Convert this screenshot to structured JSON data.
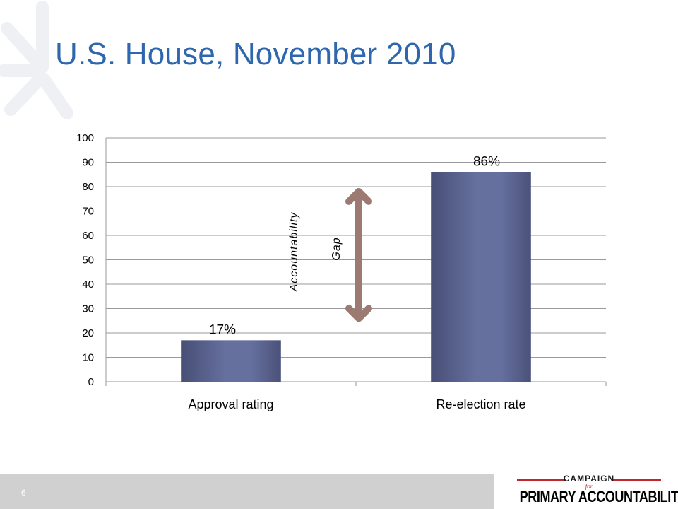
{
  "slide": {
    "title": "U.S. House, November 2010",
    "page_number": "6"
  },
  "logo": {
    "top": "CAMPAIGN",
    "middle": "for",
    "main": "PRIMARY ACCOUNTABILITY"
  },
  "colors": {
    "title": "#2e67ad",
    "bar": "#5f6995",
    "arrow": "#9c7a72",
    "gridline": "#9a9a9a",
    "footer": "#d0d0d0",
    "logo_accent": "#c0282d"
  },
  "chart_data": {
    "type": "bar",
    "categories": [
      "Approval rating",
      "Re-election rate"
    ],
    "values": [
      17,
      86
    ],
    "data_labels": [
      "17%",
      "86%"
    ],
    "ylim": [
      0,
      100
    ],
    "yticks": [
      0,
      10,
      20,
      30,
      40,
      50,
      60,
      70,
      80,
      90,
      100
    ],
    "grid": true,
    "legend": "none",
    "annotation": {
      "type": "double-arrow",
      "from": 17,
      "to": 86,
      "label_lines": [
        "Accountability",
        "Gap"
      ]
    }
  }
}
